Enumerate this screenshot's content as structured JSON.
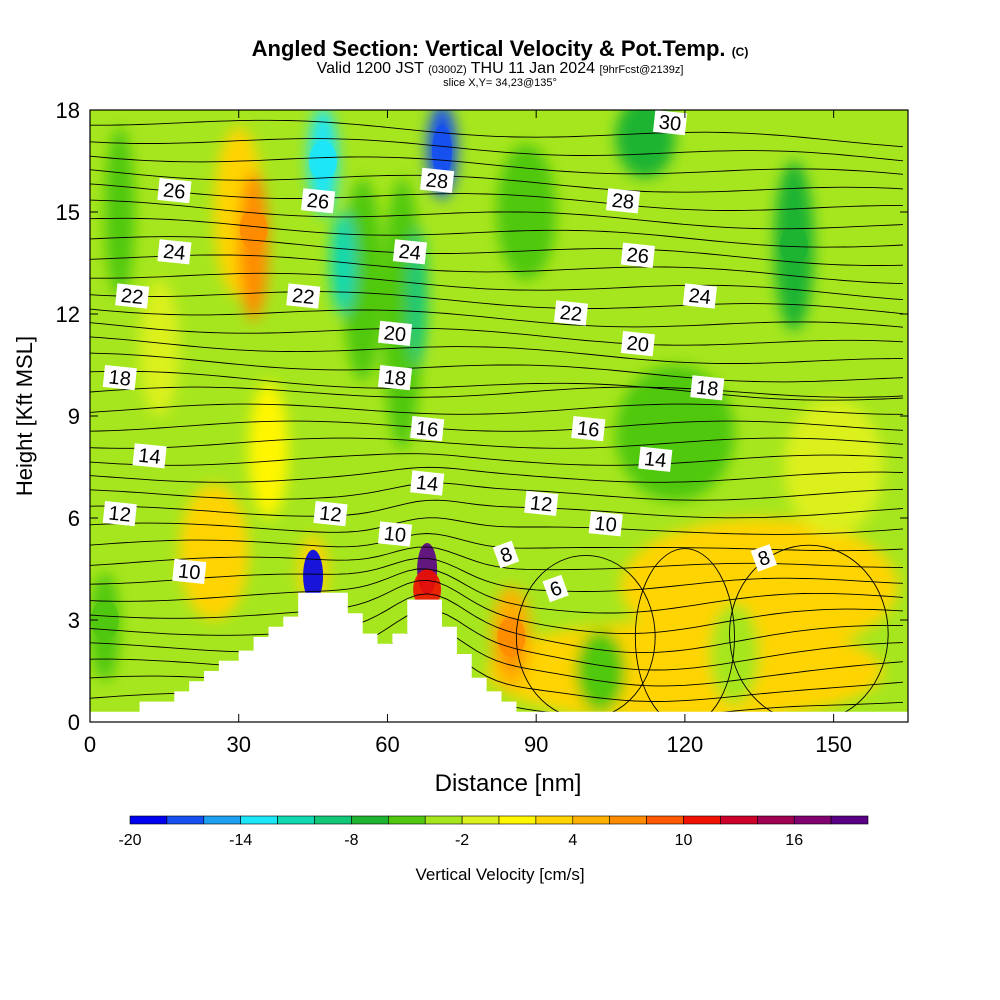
{
  "header": {
    "title": "Angled Section: Vertical Velocity & Pot.Temp.",
    "title_tag": "(C)",
    "valid_prefix": "Valid 1200 JST",
    "valid_utc": "(0300Z)",
    "valid_date": "THU 11 Jan 2024",
    "forecast": "[9hrFcst@2139z]",
    "slice": "slice X,Y= 34,23@135°"
  },
  "chart_data": {
    "type": "heatmap",
    "xlabel": "Distance [nm]",
    "ylabel": "Height [Kft MSL]",
    "xlim": [
      0,
      165
    ],
    "ylim": [
      0,
      18
    ],
    "xticks": [
      0,
      30,
      60,
      90,
      120,
      150
    ],
    "yticks": [
      0,
      3,
      6,
      9,
      12,
      15,
      18
    ],
    "colorbar": {
      "label": "Vertical Velocity [cm/s]",
      "range": [
        -20,
        20
      ],
      "ticks": [
        -20,
        -14,
        -8,
        -2,
        4,
        10,
        16
      ],
      "colors": [
        "#0000f0",
        "#1650f0",
        "#1ea0f0",
        "#1ce6f8",
        "#10d8b0",
        "#12c878",
        "#1eb432",
        "#50c810",
        "#a6e61e",
        "#dcf01e",
        "#fff600",
        "#ffd400",
        "#ffb000",
        "#ff8c00",
        "#ff5800",
        "#f01000",
        "#cc0028",
        "#a00050",
        "#800070",
        "#5a0087"
      ]
    },
    "terrain_profile_kft": [
      [
        0,
        0.3
      ],
      [
        10,
        0.3
      ],
      [
        10,
        0.6
      ],
      [
        17,
        0.6
      ],
      [
        17,
        0.9
      ],
      [
        20,
        0.9
      ],
      [
        20,
        1.2
      ],
      [
        23,
        1.2
      ],
      [
        23,
        1.5
      ],
      [
        26,
        1.5
      ],
      [
        26,
        1.8
      ],
      [
        30,
        1.8
      ],
      [
        30,
        2.1
      ],
      [
        33,
        2.1
      ],
      [
        33,
        2.5
      ],
      [
        36,
        2.5
      ],
      [
        36,
        2.8
      ],
      [
        39,
        2.8
      ],
      [
        39,
        3.1
      ],
      [
        42,
        3.1
      ],
      [
        42,
        3.8
      ],
      [
        52,
        3.8
      ],
      [
        52,
        3.2
      ],
      [
        55,
        3.2
      ],
      [
        55,
        2.6
      ],
      [
        58,
        2.6
      ],
      [
        58,
        2.3
      ],
      [
        61,
        2.3
      ],
      [
        61,
        2.6
      ],
      [
        64,
        2.6
      ],
      [
        64,
        3.6
      ],
      [
        71,
        3.6
      ],
      [
        71,
        2.8
      ],
      [
        74,
        2.8
      ],
      [
        74,
        2.0
      ],
      [
        77,
        2.0
      ],
      [
        77,
        1.3
      ],
      [
        80,
        1.3
      ],
      [
        80,
        0.9
      ],
      [
        83,
        0.9
      ],
      [
        83,
        0.6
      ],
      [
        86,
        0.6
      ],
      [
        86,
        0.3
      ],
      [
        165,
        0.3
      ]
    ],
    "vertical_velocity_features_cms": [
      {
        "x": 68,
        "y": 4.5,
        "value": 18
      },
      {
        "x": 68,
        "y": 3.9,
        "value": 11
      },
      {
        "x": 45,
        "y": 4.3,
        "value": -20
      },
      {
        "x": 47,
        "y": 16.5,
        "value": -14
      },
      {
        "x": 71,
        "y": 16.8,
        "value": -18
      },
      {
        "x": 33,
        "y": 14.5,
        "value": 6
      },
      {
        "x": 85,
        "y": 2.5,
        "value": 6
      },
      {
        "x": 3,
        "y": 3.0,
        "value": -6
      },
      {
        "x": 142,
        "y": 14.0,
        "value": -8
      },
      {
        "x": 112,
        "y": 17.0,
        "value": -8
      }
    ],
    "isotherms": [
      {
        "value": 6,
        "label": "6"
      },
      {
        "value": 8,
        "label": "8"
      },
      {
        "value": 10,
        "label": "10"
      },
      {
        "value": 12,
        "label": "12"
      },
      {
        "value": 14,
        "label": "14"
      },
      {
        "value": 16,
        "label": "16"
      },
      {
        "value": 18,
        "label": "18"
      },
      {
        "value": 20,
        "label": "20"
      },
      {
        "value": 22,
        "label": "22"
      },
      {
        "value": 24,
        "label": "24"
      },
      {
        "value": 26,
        "label": "26"
      },
      {
        "value": 28,
        "label": "28"
      },
      {
        "value": 30,
        "label": "30"
      }
    ],
    "contour_labels": [
      {
        "text": "26",
        "x": 17,
        "y": 15.6
      },
      {
        "text": "24",
        "x": 17,
        "y": 13.8
      },
      {
        "text": "22",
        "x": 8.5,
        "y": 12.5
      },
      {
        "text": "18",
        "x": 6,
        "y": 10.1
      },
      {
        "text": "14",
        "x": 12,
        "y": 7.8
      },
      {
        "text": "12",
        "x": 6,
        "y": 6.1
      },
      {
        "text": "10",
        "x": 20,
        "y": 4.4
      },
      {
        "text": "26",
        "x": 46,
        "y": 15.3
      },
      {
        "text": "22",
        "x": 43,
        "y": 12.5
      },
      {
        "text": "12",
        "x": 48.5,
        "y": 6.1
      },
      {
        "text": "10",
        "x": 61.5,
        "y": 5.5
      },
      {
        "text": "28",
        "x": 70,
        "y": 15.9
      },
      {
        "text": "24",
        "x": 64.5,
        "y": 13.8
      },
      {
        "text": "20",
        "x": 61.5,
        "y": 11.4
      },
      {
        "text": "18",
        "x": 61.5,
        "y": 10.1
      },
      {
        "text": "16",
        "x": 68,
        "y": 8.6
      },
      {
        "text": "14",
        "x": 68,
        "y": 7.0
      },
      {
        "text": "8",
        "x": 84,
        "y": 4.9
      },
      {
        "text": "6",
        "x": 94,
        "y": 3.9
      },
      {
        "text": "12",
        "x": 91,
        "y": 6.4
      },
      {
        "text": "22",
        "x": 97,
        "y": 12.0
      },
      {
        "text": "16",
        "x": 100.5,
        "y": 8.6
      },
      {
        "text": "10",
        "x": 104,
        "y": 5.8
      },
      {
        "text": "30",
        "x": 117,
        "y": 17.6
      },
      {
        "text": "28",
        "x": 107.5,
        "y": 15.3
      },
      {
        "text": "26",
        "x": 110.5,
        "y": 13.7
      },
      {
        "text": "20",
        "x": 110.5,
        "y": 11.1
      },
      {
        "text": "14",
        "x": 114,
        "y": 7.7
      },
      {
        "text": "24",
        "x": 123,
        "y": 12.5
      },
      {
        "text": "18",
        "x": 124.5,
        "y": 9.8
      },
      {
        "text": "8",
        "x": 136,
        "y": 4.8
      }
    ]
  }
}
